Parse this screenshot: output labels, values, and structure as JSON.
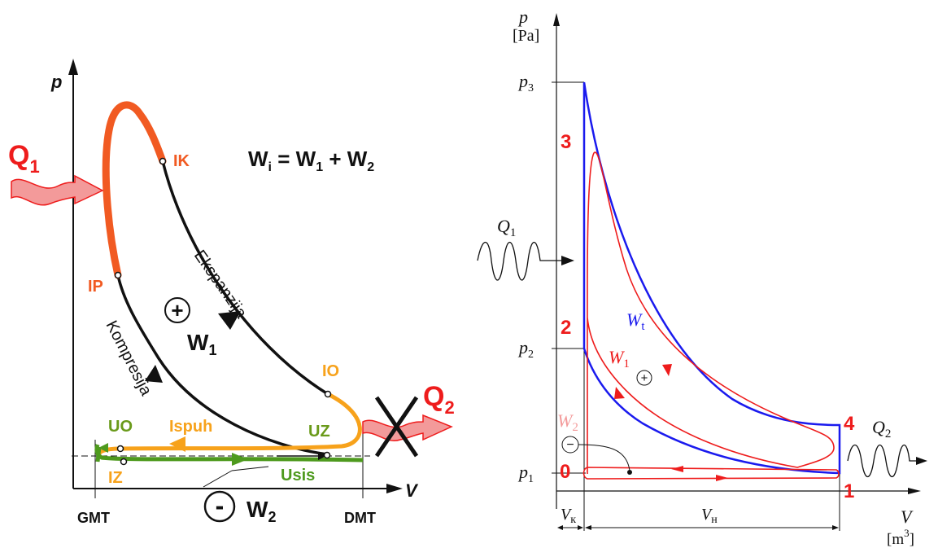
{
  "colors": {
    "black": "#111111",
    "red": "#ee1c1c",
    "orange_red": "#f15a22",
    "orange": "#f7a21b",
    "green": "#4e9a1e",
    "olive": "#6a9a1a",
    "blue": "#1a1aee",
    "pink": "#f39a9a"
  },
  "left": {
    "axis_p": "p",
    "axis_v": "V",
    "q1": "Q",
    "q1_sub": "1",
    "q2": "Q",
    "q2_sub": "2",
    "formula": {
      "w": "W",
      "i_sub": "i",
      "eq": " = ",
      "w1": "W",
      "one_sub": "1",
      "plus": " + ",
      "w2": "W",
      "two_sub": "2"
    },
    "points": {
      "ik": "IK",
      "ip": "IP",
      "io": "IO",
      "uz": "UZ",
      "uo": "UO",
      "iz": "IZ"
    },
    "processes": {
      "ekspanzija": "Ekspanzija",
      "kompresija": "Kompresija",
      "ispuh": "Ispuh",
      "usis": "Usis"
    },
    "plus_sign": "+",
    "minus_sign": "-",
    "w1_label": "W",
    "w1_sub": "1",
    "w2_label": "W",
    "w2_sub": "2",
    "gmt": "GMT",
    "dmt": "DMT"
  },
  "right": {
    "axis_p": "p",
    "axis_p_unit": "[Pa]",
    "axis_v": "V",
    "axis_v_unit": "[m",
    "axis_v_unit_exp": "3",
    "axis_v_unit_close": "]",
    "p3": "p",
    "p3_sub": "3",
    "p2": "p",
    "p2_sub": "2",
    "p1": "p",
    "p1_sub": "1",
    "state_3": "3",
    "state_2": "2",
    "state_4": "4",
    "state_0": "0",
    "state_1": "1",
    "q1": "Q",
    "q1_sub": "1",
    "q2": "Q",
    "q2_sub": "2",
    "wt": "W",
    "wt_sub": "t",
    "w1": "W",
    "w1_sub": "1",
    "w2": "W",
    "w2_sub": "2",
    "plus_sign": "+",
    "minus_sign": "−",
    "vk": "V",
    "vk_sub": "к",
    "vh": "V",
    "vh_sub": "н"
  }
}
